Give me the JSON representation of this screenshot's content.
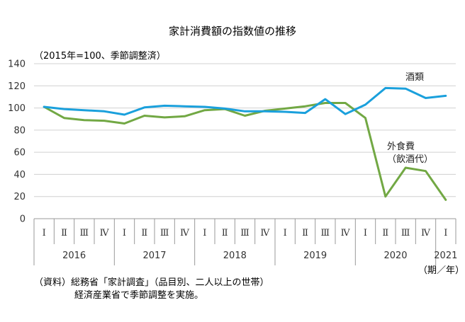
{
  "title": "家計消費額の指数値の推移",
  "note": "（2015年=100、季節調整済）",
  "unit": "（期／年）",
  "source": [
    "（資料）総務省「家計調査」（品目別、二人以上の世帯）",
    "経済産業省で季節調整を実施。"
  ],
  "colors": {
    "alcohol": "#1aa0dc",
    "dining": "#72a844",
    "grid": "#d0d0d0",
    "axis": "#9a9a9a"
  },
  "chart_data": {
    "type": "line",
    "ylim": [
      0,
      140
    ],
    "yticks": [
      0,
      20,
      40,
      60,
      80,
      100,
      120,
      140
    ],
    "grid": "horizontal",
    "quarters": [
      "Ⅰ",
      "Ⅱ",
      "Ⅲ",
      "Ⅳ",
      "Ⅰ",
      "Ⅱ",
      "Ⅲ",
      "Ⅳ",
      "Ⅰ",
      "Ⅱ",
      "Ⅲ",
      "Ⅳ",
      "Ⅰ",
      "Ⅱ",
      "Ⅲ",
      "Ⅳ",
      "Ⅰ",
      "Ⅱ",
      "Ⅲ",
      "Ⅳ",
      "Ⅰ"
    ],
    "years": [
      "2016",
      "2017",
      "2018",
      "2019",
      "2020",
      "2021"
    ],
    "series": [
      {
        "name": "酒類",
        "label_lines": [
          "酒類"
        ],
        "color": "#1aa0dc",
        "values": [
          101,
          99,
          98,
          97,
          94,
          100.5,
          102,
          101.5,
          101,
          99.5,
          97,
          97,
          96.5,
          95.5,
          108,
          94.5,
          103,
          118,
          117.5,
          109,
          111
        ]
      },
      {
        "name": "外食費（飲酒代）",
        "label_lines": [
          "外食費",
          "（飲酒代）"
        ],
        "color": "#72a844",
        "values": [
          101,
          91,
          89,
          88.5,
          86,
          93,
          91.5,
          92.5,
          98,
          99,
          93,
          97.5,
          99.5,
          101.5,
          104.5,
          104.5,
          91,
          20,
          46,
          43,
          17
        ]
      }
    ]
  }
}
